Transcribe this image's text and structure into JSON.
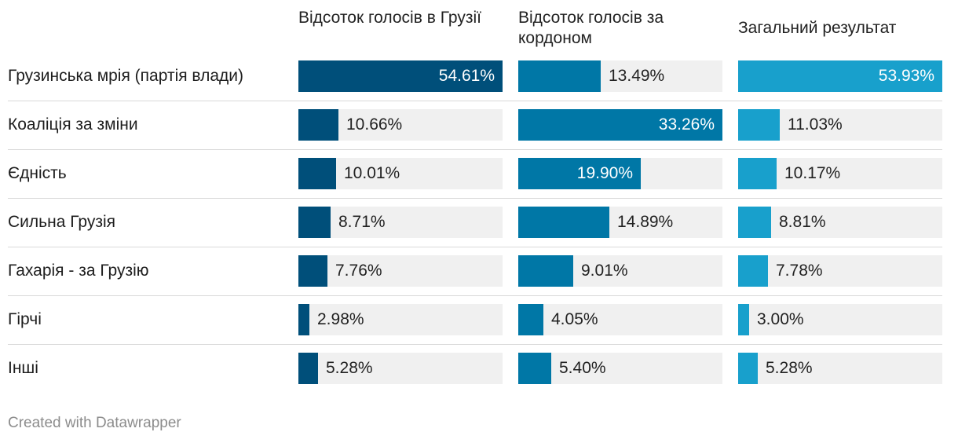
{
  "chart_data": {
    "type": "table",
    "title": "",
    "columns": [
      {
        "key": "georgia",
        "label": "Відсоток голосів в Грузії",
        "color": "#004f7a"
      },
      {
        "key": "abroad",
        "label": "Відсоток голосів за кордоном",
        "color": "#0077a6"
      },
      {
        "key": "total",
        "label": "Загальний результат",
        "color": "#18a0cc"
      }
    ],
    "categories": [
      "Грузинська мрія (партія влади)",
      "Коаліція за зміни",
      "Єдність",
      "Сильна Грузія",
      "Гахарія - за Грузію",
      "Гірчі",
      "Інші"
    ],
    "series": [
      {
        "name": "Відсоток голосів в Грузії",
        "values": [
          54.61,
          10.66,
          10.01,
          8.71,
          7.76,
          2.98,
          5.28
        ],
        "labels": [
          "54.61%",
          "10.66%",
          "10.01%",
          "8.71%",
          "7.76%",
          "2.98%",
          "5.28%"
        ]
      },
      {
        "name": "Відсоток голосів за кордоном",
        "values": [
          13.49,
          33.26,
          19.9,
          14.89,
          9.01,
          4.05,
          5.4
        ],
        "labels": [
          "13.49%",
          "33.26%",
          "19.90%",
          "14.89%",
          "9.01%",
          "4.05%",
          "5.40%"
        ]
      },
      {
        "name": "Загальний результат",
        "values": [
          53.93,
          11.03,
          10.17,
          8.81,
          7.78,
          3.0,
          5.28
        ],
        "labels": [
          "53.93%",
          "11.03%",
          "10.17%",
          "8.81%",
          "7.78%",
          "3.00%",
          "5.28%"
        ]
      }
    ],
    "max": [
      54.61,
      33.26,
      53.93
    ]
  },
  "footer": "Created with Datawrapper"
}
